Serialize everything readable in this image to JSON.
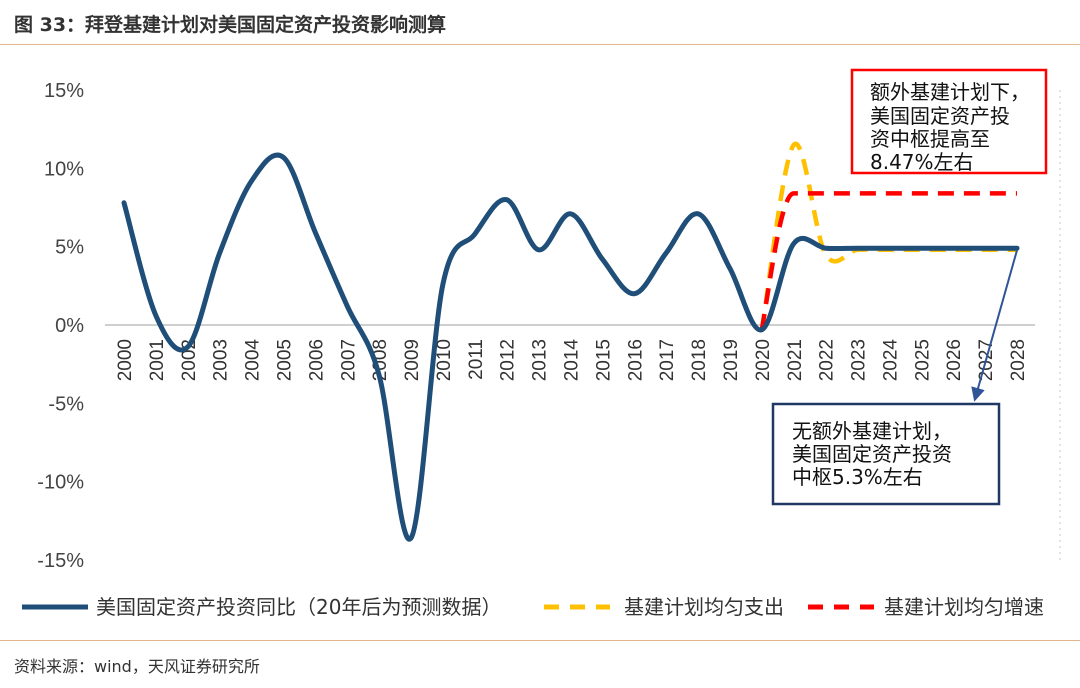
{
  "header": {
    "title": "图 33：拜登基建计划对美国固定资产投资影响测算"
  },
  "footer": {
    "source": "资料来源：wind，天风证券研究所"
  },
  "chart_data": {
    "type": "line",
    "x": [
      2000,
      2001,
      2002,
      2003,
      2004,
      2005,
      2006,
      2007,
      2008,
      2009,
      2010,
      2011,
      2012,
      2013,
      2014,
      2015,
      2016,
      2017,
      2018,
      2019,
      2020,
      2021,
      2022,
      2023,
      2024,
      2025,
      2026,
      2027,
      2028
    ],
    "x_tick_labels": [
      "2000",
      "2001",
      "2002",
      "2003",
      "2004",
      "2005",
      "2006",
      "2007",
      "2008",
      "2009",
      "2010",
      "2011",
      "2012",
      "2013",
      "2014",
      "2015",
      "2016",
      "2017",
      "2018",
      "2019",
      "2020",
      "2021",
      "2022",
      "2023",
      "2024",
      "2025",
      "2026",
      "2027",
      "2028"
    ],
    "y_tick_labels": [
      "15%",
      "10%",
      "5%",
      "0%",
      "-5%",
      "-10%",
      "-15%"
    ],
    "y_ticks": [
      15,
      10,
      5,
      0,
      -5,
      -10,
      -15
    ],
    "ylim": [
      -15.5,
      15
    ],
    "series": [
      {
        "name": "美国固定资产投资同比（20年后为预测数据）",
        "style": "solid",
        "color": "#1f4e79",
        "x": [
          2000,
          2001,
          2002,
          2003,
          2004,
          2005,
          2006,
          2007,
          2008,
          2009,
          2010,
          2011,
          2012,
          2013,
          2014,
          2015,
          2016,
          2017,
          2018,
          2019,
          2020,
          2021,
          2022,
          2023,
          2024,
          2025,
          2026,
          2027,
          2028
        ],
        "values": [
          7.8,
          0.6,
          -1.4,
          4.6,
          9.2,
          10.7,
          5.9,
          1.2,
          -3.2,
          -13.6,
          2.6,
          5.8,
          8.0,
          4.8,
          7.1,
          4.2,
          2.0,
          4.6,
          7.1,
          3.6,
          -0.3,
          5.2,
          4.9,
          4.9,
          4.9,
          4.9,
          4.9,
          4.9,
          4.9
        ]
      },
      {
        "name": "基建计划均匀支出",
        "style": "dashed",
        "color": "#ffc000",
        "x": [
          2020,
          2021,
          2022,
          2023,
          2024,
          2025,
          2026,
          2027,
          2028
        ],
        "values": [
          -0.3,
          11.5,
          4.5,
          4.8,
          4.8,
          4.8,
          4.8,
          4.8,
          4.8
        ]
      },
      {
        "name": "基建计划均匀增速",
        "style": "dashed",
        "color": "#ff0000",
        "x": [
          2020,
          2021,
          2022,
          2023,
          2024,
          2025,
          2026,
          2027,
          2028
        ],
        "values": [
          -0.3,
          8.4,
          8.4,
          8.4,
          8.4,
          8.4,
          8.4,
          8.4,
          8.4
        ]
      }
    ],
    "annotations": [
      {
        "lines": [
          "额外基建计划下，",
          "美国固定资产投",
          "资中枢提高至",
          "8.47%左右"
        ],
        "border": "#ff0000"
      },
      {
        "lines": [
          "无额外基建计划，",
          "美国固定资产投资",
          "中枢5.3%左右"
        ],
        "border": "#1f3864"
      }
    ],
    "legend_position": "bottom",
    "grid": false
  }
}
